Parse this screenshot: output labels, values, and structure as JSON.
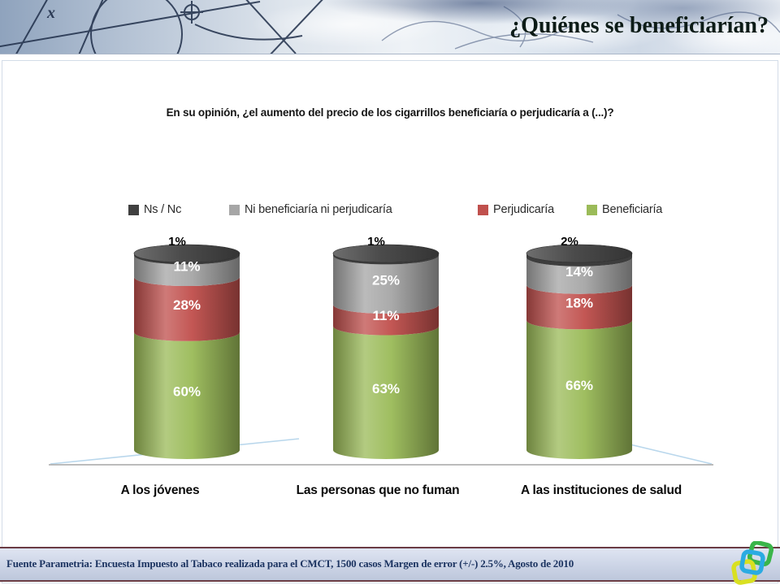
{
  "header": {
    "title": "¿Quiénes se beneficiarían?"
  },
  "question": "En su opinión, ¿el aumento del precio de los cigarrillos beneficiaría o perjudicaría a (...)?",
  "legend": [
    {
      "label": "Ns / Nc",
      "color": "#404040"
    },
    {
      "label": "Ni beneficiaría ni perjudicaría",
      "color": "#A6A6A6"
    },
    {
      "label": "Perjudicaría",
      "color": "#C0504D"
    },
    {
      "label": "Beneficiaría",
      "color": "#9BBB59"
    }
  ],
  "chart_data": {
    "type": "bar",
    "subtype": "stacked-3d-cylinder",
    "title": "En su opinión, ¿el aumento del precio de los cigarrillos beneficiaría o perjudicaría a (...)?",
    "categories": [
      "A los jóvenes",
      "Las personas que no fuman",
      "A las instituciones de salud"
    ],
    "series": [
      {
        "name": "Beneficiaría",
        "color": "#9BBB59",
        "values": [
          60,
          63,
          66
        ]
      },
      {
        "name": "Perjudicaría",
        "color": "#C0504D",
        "values": [
          28,
          11,
          18
        ]
      },
      {
        "name": "Ni beneficiaría ni perjudicaría",
        "color": "#A6A6A6",
        "values": [
          11,
          25,
          14
        ]
      },
      {
        "name": "Ns / Nc",
        "color": "#404040",
        "values": [
          1,
          1,
          2
        ]
      }
    ],
    "value_format": "percent",
    "ylim": [
      0,
      100
    ],
    "grid": false,
    "legend_position": "top"
  },
  "footer": {
    "source": "Fuente Parametria: Encuesta Impuesto al Tabaco realizada para el CMCT, 1500 casos Margen de error (+/-) 2.5%, Agosto de 2010"
  },
  "logo": {
    "colors": [
      "#3ab54a",
      "#2aabe2",
      "#d9e021"
    ]
  }
}
